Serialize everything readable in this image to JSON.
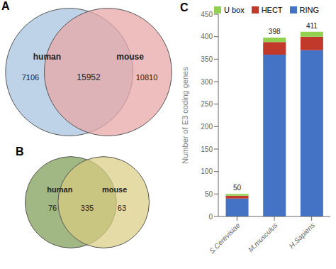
{
  "chart_data": [
    {
      "type": "venn",
      "title": "A",
      "series": [
        {
          "name": "human",
          "color": "#a8c4e0"
        },
        {
          "name": "mouse",
          "color": "#e8a8a8"
        }
      ],
      "values": [
        7106,
        15952,
        10810
      ]
    },
    {
      "type": "venn",
      "title": "B",
      "series": [
        {
          "name": "human",
          "color": "#7a9a50"
        },
        {
          "name": "mouse",
          "color": "#d8cc80"
        }
      ],
      "values": [
        76,
        335,
        63
      ]
    },
    {
      "type": "bar",
      "title": "C",
      "stacked": true,
      "categories": [
        "S.Cerevisiae",
        "M.musculus",
        "H.Sapiens"
      ],
      "series": [
        {
          "name": "RING",
          "color": "#4472c4",
          "values": [
            40,
            360,
            370
          ]
        },
        {
          "name": "HECT",
          "color": "#c0392b",
          "values": [
            6,
            28,
            30
          ]
        },
        {
          "name": "U box",
          "color": "#92d050",
          "values": [
            4,
            10,
            11
          ]
        }
      ],
      "totals": [
        50,
        398,
        411
      ],
      "ylabel": "Number of E3 coding genes",
      "ylim": [
        0,
        450
      ],
      "yticks": [
        0,
        50,
        100,
        150,
        200,
        250,
        300,
        350,
        400,
        450
      ],
      "grid": false,
      "legend": "top"
    }
  ]
}
